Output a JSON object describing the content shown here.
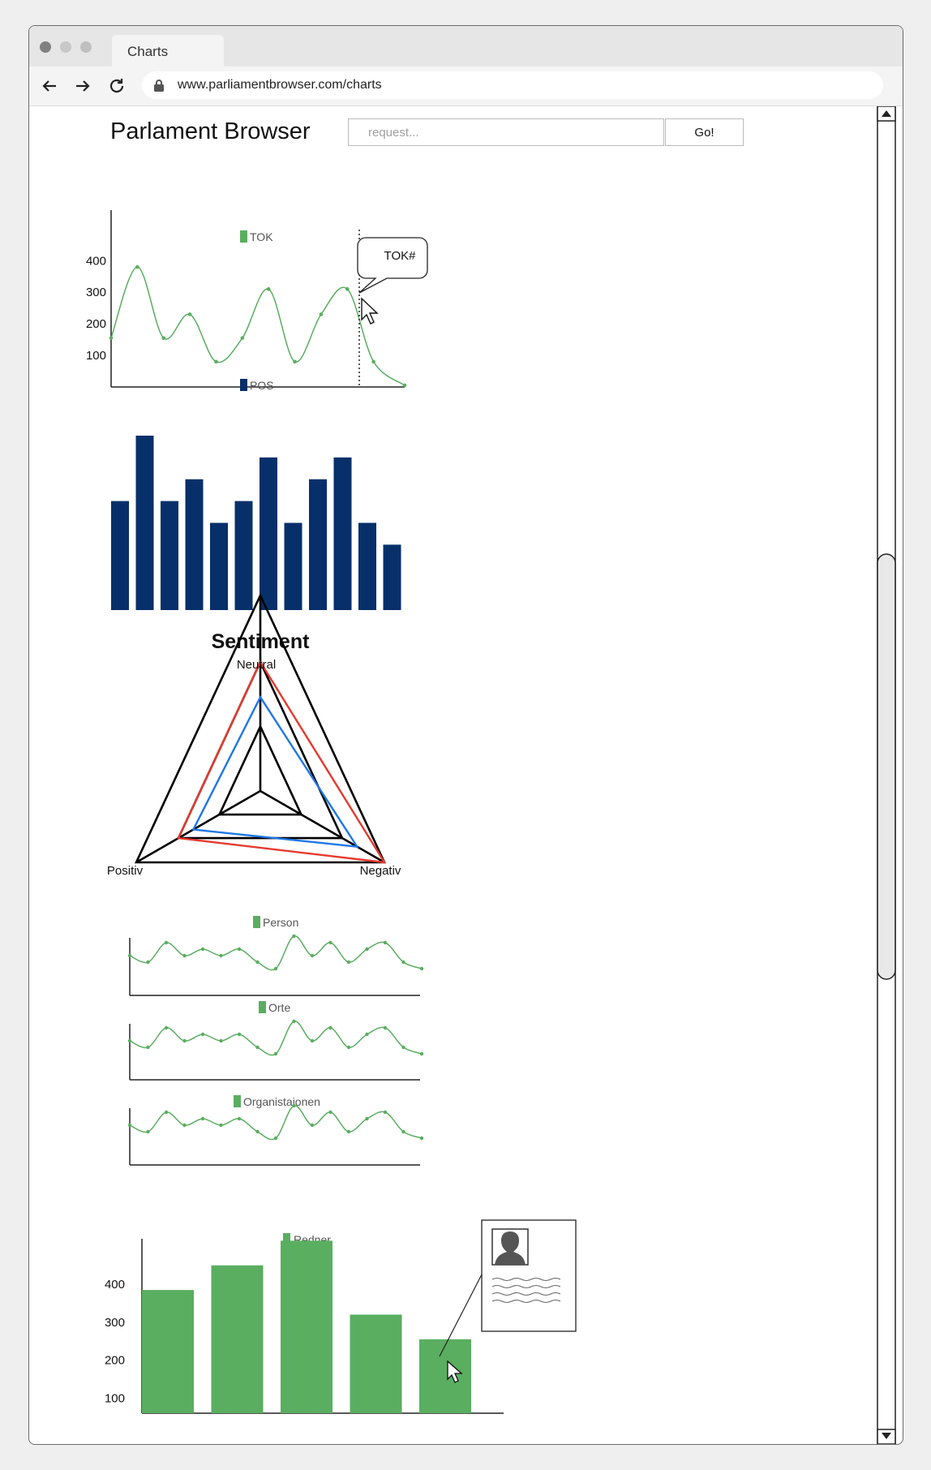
{
  "browser": {
    "tab_title": "Charts",
    "url": "www.parliamentbrowser.com/charts"
  },
  "header": {
    "brand": "Parlament Browser",
    "search_placeholder": "request...",
    "go_label": "Go!"
  },
  "tooltip": {
    "label": "TOK#"
  },
  "colors": {
    "green": "#5aae60",
    "navy": "#07306a",
    "red": "#e53a2f",
    "blue": "#1e77e6"
  },
  "chart_data": [
    {
      "type": "line",
      "legend": "TOK",
      "yticks": [
        100,
        200,
        300,
        400
      ],
      "ylim": [
        0,
        560
      ],
      "values": [
        155,
        380,
        155,
        230,
        80,
        155,
        310,
        80,
        230,
        310,
        80,
        5
      ]
    },
    {
      "type": "bar",
      "legend": "POS",
      "values": [
        5,
        8,
        5,
        6,
        4,
        5,
        7,
        4,
        6,
        7,
        4,
        3
      ],
      "ylim": [
        0,
        8
      ]
    },
    {
      "type": "radar",
      "title": "Sentiment",
      "axes": [
        "Neutral",
        "Negativ",
        "Positiv"
      ],
      "series": [
        {
          "color": "red",
          "values": [
            0.66,
            1.0,
            0.66
          ]
        },
        {
          "color": "blue",
          "values": [
            0.48,
            0.78,
            0.54
          ]
        }
      ]
    },
    {
      "type": "line",
      "legend": "Person",
      "values": [
        5,
        4,
        7,
        5,
        6,
        5,
        6,
        4,
        3,
        8,
        5,
        7,
        4,
        6,
        7,
        4,
        3
      ]
    },
    {
      "type": "line",
      "legend": "Orte",
      "values": [
        5,
        4,
        7,
        5,
        6,
        5,
        6,
        4,
        3,
        8,
        5,
        7,
        4,
        6,
        7,
        4,
        3
      ]
    },
    {
      "type": "line",
      "legend": "Organistaionen",
      "values": [
        5,
        4,
        7,
        5,
        6,
        5,
        6,
        4,
        3,
        8,
        5,
        7,
        4,
        6,
        7,
        4,
        3
      ]
    },
    {
      "type": "bar",
      "legend": "Redner",
      "yticks": [
        100,
        200,
        300,
        400
      ],
      "ylim": [
        60,
        520
      ],
      "values": [
        385,
        450,
        515,
        320,
        255
      ]
    }
  ]
}
